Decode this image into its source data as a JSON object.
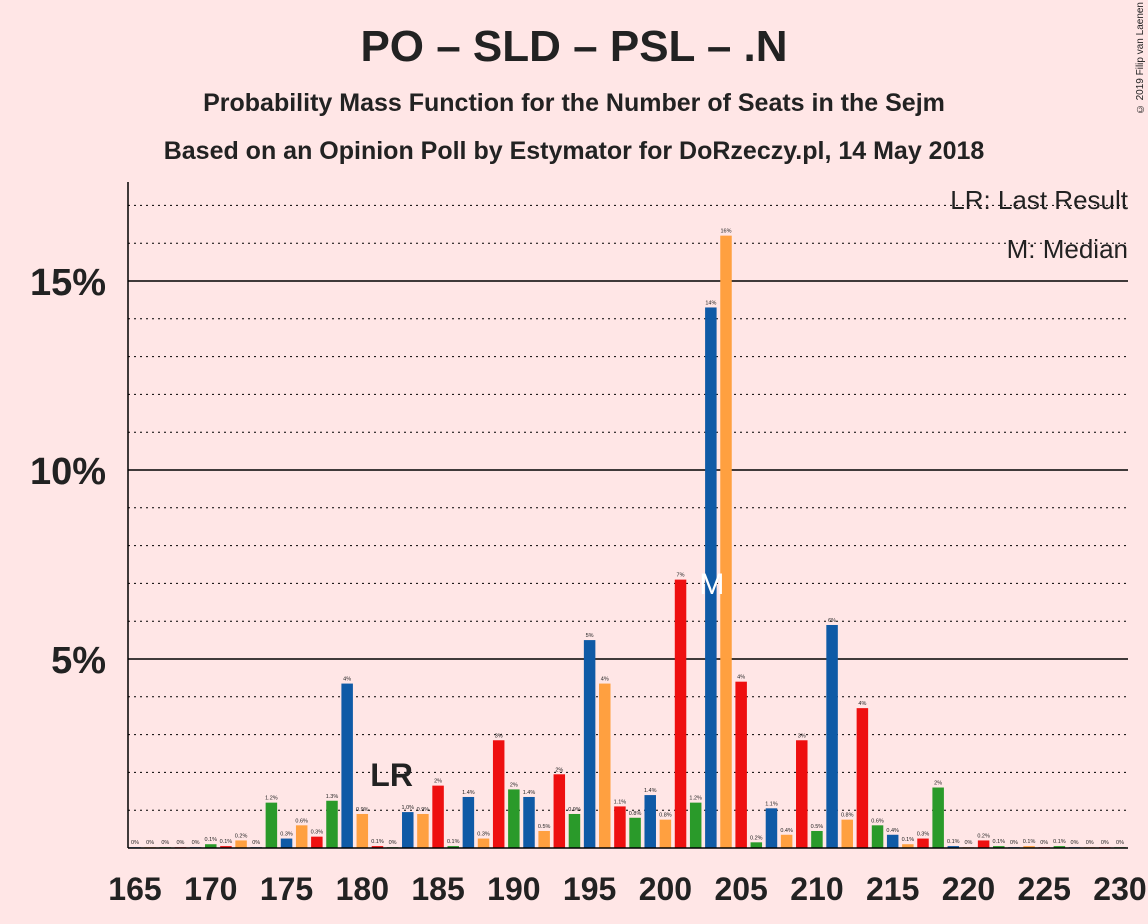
{
  "title": "PO – SLD – PSL – .N",
  "subtitle1": "Probability Mass Function for the Number of Seats in the Sejm",
  "subtitle2": "Based on an Opinion Poll by Estymator for DoRzeczy.pl, 14 May 2018",
  "copyright": "© 2019 Filip van Laenen",
  "legend": {
    "lr": "LR: Last Result",
    "m": "M: Median"
  },
  "colors": {
    "background": "#FFE6E6",
    "blue": "#0F5AA6",
    "orange": "#FFA040",
    "green": "#2A9A2A",
    "red": "#EE1010"
  },
  "chart_data": {
    "type": "bar",
    "xlim": [
      165,
      230
    ],
    "ylim": [
      0,
      17.5
    ],
    "x_ticks": [
      165,
      170,
      175,
      180,
      185,
      190,
      195,
      200,
      205,
      210,
      215,
      220,
      225,
      230
    ],
    "y_ticks": [
      {
        "value": 5,
        "label": "5%"
      },
      {
        "value": 10,
        "label": "10%"
      },
      {
        "value": 15,
        "label": "15%"
      }
    ],
    "grid": "dotted every 1%, solid every 5%",
    "last_result": {
      "seat": 182,
      "label": "LR"
    },
    "median": {
      "seat": 203,
      "label": "M"
    },
    "bars": [
      {
        "seat": 165,
        "value": 0.02,
        "label": "0%",
        "color": "blue"
      },
      {
        "seat": 166,
        "value": 0.02,
        "label": "0%",
        "color": "orange"
      },
      {
        "seat": 167,
        "value": 0.02,
        "label": "0%",
        "color": "green"
      },
      {
        "seat": 168,
        "value": 0.02,
        "label": "0%",
        "color": "red"
      },
      {
        "seat": 169,
        "value": 0.02,
        "label": "0%",
        "color": "blue"
      },
      {
        "seat": 170,
        "value": 0.1,
        "label": "0.1%",
        "color": "green"
      },
      {
        "seat": 171,
        "value": 0.05,
        "label": "0.1%",
        "color": "red"
      },
      {
        "seat": 172,
        "value": 0.2,
        "label": "0.2%",
        "color": "orange"
      },
      {
        "seat": 173,
        "value": 0.02,
        "label": "0%",
        "color": "blue"
      },
      {
        "seat": 174,
        "value": 1.2,
        "label": "1.2%",
        "color": "green"
      },
      {
        "seat": 175,
        "value": 0.25,
        "label": "0.3%",
        "color": "blue"
      },
      {
        "seat": 176,
        "value": 0.6,
        "label": "0.6%",
        "color": "orange"
      },
      {
        "seat": 177,
        "value": 0.3,
        "label": "0.3%",
        "color": "red"
      },
      {
        "seat": 178,
        "value": 1.25,
        "label": "1.3%",
        "color": "green"
      },
      {
        "seat": 179,
        "value": 4.35,
        "label": "4%",
        "color": "blue"
      },
      {
        "seat": 180,
        "value": 0.9,
        "label": "0.9%",
        "color": "orange"
      },
      {
        "seat": 181,
        "value": 0.05,
        "label": "0.1%",
        "color": "red"
      },
      {
        "seat": 182,
        "value": 0.02,
        "label": "0%",
        "color": "green"
      },
      {
        "seat": 183,
        "value": 0.95,
        "label": "1.0%",
        "color": "blue"
      },
      {
        "seat": 184,
        "value": 0.9,
        "label": "0.9%",
        "color": "orange"
      },
      {
        "seat": 185,
        "value": 1.65,
        "label": "2%",
        "color": "red"
      },
      {
        "seat": 186,
        "value": 0.05,
        "label": "0.1%",
        "color": "green"
      },
      {
        "seat": 187,
        "value": 1.35,
        "label": "1.4%",
        "color": "blue"
      },
      {
        "seat": 188,
        "value": 0.25,
        "label": "0.3%",
        "color": "orange"
      },
      {
        "seat": 189,
        "value": 2.85,
        "label": "3%",
        "color": "red"
      },
      {
        "seat": 190,
        "value": 1.55,
        "label": "2%",
        "color": "green"
      },
      {
        "seat": 191,
        "value": 1.35,
        "label": "1.4%",
        "color": "blue"
      },
      {
        "seat": 192,
        "value": 0.45,
        "label": "0.5%",
        "color": "orange"
      },
      {
        "seat": 193,
        "value": 1.95,
        "label": "2%",
        "color": "red"
      },
      {
        "seat": 194,
        "value": 0.9,
        "label": "0.9%",
        "color": "green"
      },
      {
        "seat": 195,
        "value": 5.5,
        "label": "5%",
        "color": "blue"
      },
      {
        "seat": 196,
        "value": 4.35,
        "label": "4%",
        "color": "orange"
      },
      {
        "seat": 197,
        "value": 1.1,
        "label": "1.1%",
        "color": "red"
      },
      {
        "seat": 198,
        "value": 0.8,
        "label": "0.8%",
        "color": "green"
      },
      {
        "seat": 199,
        "value": 1.4,
        "label": "1.4%",
        "color": "blue"
      },
      {
        "seat": 200,
        "value": 0.75,
        "label": "0.8%",
        "color": "orange"
      },
      {
        "seat": 201,
        "value": 7.1,
        "label": "7%",
        "color": "red"
      },
      {
        "seat": 202,
        "value": 1.2,
        "label": "1.2%",
        "color": "green"
      },
      {
        "seat": 203,
        "value": 14.3,
        "label": "14%",
        "color": "blue"
      },
      {
        "seat": 204,
        "value": 16.2,
        "label": "16%",
        "color": "orange"
      },
      {
        "seat": 205,
        "value": 4.4,
        "label": "4%",
        "color": "red"
      },
      {
        "seat": 206,
        "value": 0.15,
        "label": "0.2%",
        "color": "green"
      },
      {
        "seat": 207,
        "value": 1.05,
        "label": "1.1%",
        "color": "blue"
      },
      {
        "seat": 208,
        "value": 0.35,
        "label": "0.4%",
        "color": "orange"
      },
      {
        "seat": 209,
        "value": 2.85,
        "label": "3%",
        "color": "red"
      },
      {
        "seat": 210,
        "value": 0.45,
        "label": "0.5%",
        "color": "green"
      },
      {
        "seat": 211,
        "value": 5.9,
        "label": "6%",
        "color": "blue"
      },
      {
        "seat": 212,
        "value": 0.75,
        "label": "0.8%",
        "color": "orange"
      },
      {
        "seat": 213,
        "value": 3.7,
        "label": "4%",
        "color": "red"
      },
      {
        "seat": 214,
        "value": 0.6,
        "label": "0.6%",
        "color": "green"
      },
      {
        "seat": 215,
        "value": 0.35,
        "label": "0.4%",
        "color": "blue"
      },
      {
        "seat": 216,
        "value": 0.1,
        "label": "0.1%",
        "color": "orange"
      },
      {
        "seat": 217,
        "value": 0.25,
        "label": "0.3%",
        "color": "red"
      },
      {
        "seat": 218,
        "value": 1.6,
        "label": "2%",
        "color": "green"
      },
      {
        "seat": 219,
        "value": 0.05,
        "label": "0.1%",
        "color": "blue"
      },
      {
        "seat": 220,
        "value": 0.02,
        "label": "0%",
        "color": "orange"
      },
      {
        "seat": 221,
        "value": 0.2,
        "label": "0.2%",
        "color": "red"
      },
      {
        "seat": 222,
        "value": 0.05,
        "label": "0.1%",
        "color": "green"
      },
      {
        "seat": 223,
        "value": 0.02,
        "label": "0%",
        "color": "blue"
      },
      {
        "seat": 224,
        "value": 0.05,
        "label": "0.1%",
        "color": "orange"
      },
      {
        "seat": 225,
        "value": 0.02,
        "label": "0%",
        "color": "red"
      },
      {
        "seat": 226,
        "value": 0.05,
        "label": "0.1%",
        "color": "green"
      },
      {
        "seat": 227,
        "value": 0.02,
        "label": "0%",
        "color": "blue"
      },
      {
        "seat": 228,
        "value": 0.02,
        "label": "0%",
        "color": "orange"
      },
      {
        "seat": 229,
        "value": 0.02,
        "label": "0%",
        "color": "red"
      },
      {
        "seat": 230,
        "value": 0.02,
        "label": "0%",
        "color": "green"
      }
    ]
  }
}
